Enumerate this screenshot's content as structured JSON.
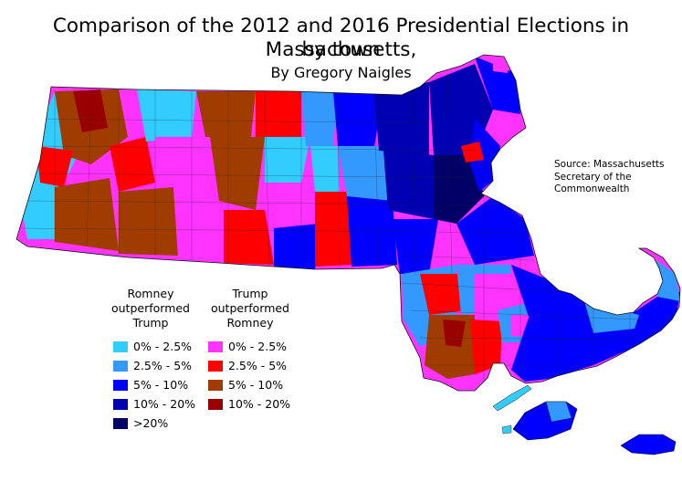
{
  "title_line1": "Comparison of the 2012 and 2016 Presidential Elections in Massachusetts,",
  "title_line2": "by town",
  "subtitle": "By Gregory Naigles",
  "source": "Source: Massachusetts Secretary of the Commonwealth",
  "legend": {
    "romney_header": "Romney outperformed Trump",
    "trump_header": "Trump outperformed Romney",
    "romney": [
      {
        "label": "0% - 2.5%",
        "color": "#33ccff"
      },
      {
        "label": "2.5% - 5%",
        "color": "#3399ff"
      },
      {
        "label": "5% - 10%",
        "color": "#0000ff"
      },
      {
        "label": "10% - 20%",
        "color": "#0000b3"
      },
      {
        "label": ">20%",
        "color": "#000066"
      }
    ],
    "trump": [
      {
        "label": "0% - 2.5%",
        "color": "#ff33ff"
      },
      {
        "label": "2.5% - 5%",
        "color": "#ff0000"
      },
      {
        "label": "5% - 10%",
        "color": "#a03c00"
      },
      {
        "label": "10% - 20%",
        "color": "#990000"
      }
    ]
  }
}
